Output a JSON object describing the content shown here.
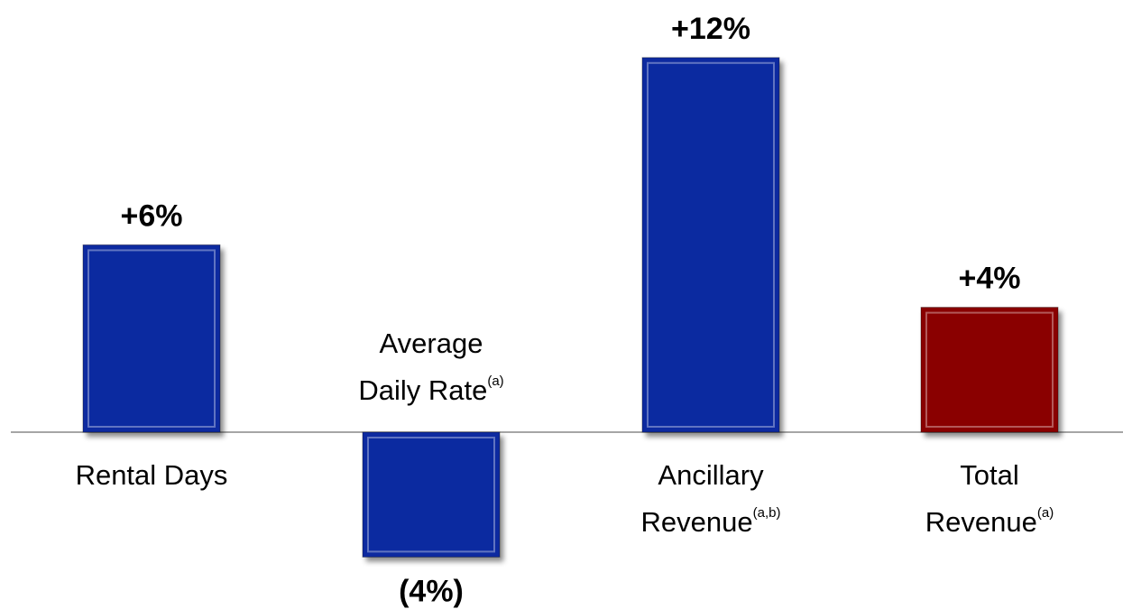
{
  "chart_data": {
    "type": "bar",
    "categories": [
      "Rental Days",
      "Average\nDaily Rate",
      "Ancillary\nRevenue",
      "Total\nRevenue"
    ],
    "category_notes": [
      null,
      "(a)",
      "(a,b)",
      "(a)"
    ],
    "values": [
      6,
      -4,
      12,
      4
    ],
    "value_labels": [
      "+6%",
      "(4%)",
      "+12%",
      "+4%"
    ],
    "colors": [
      "#0b2aa0",
      "#0b2aa0",
      "#0b2aa0",
      "#8a0000"
    ]
  }
}
